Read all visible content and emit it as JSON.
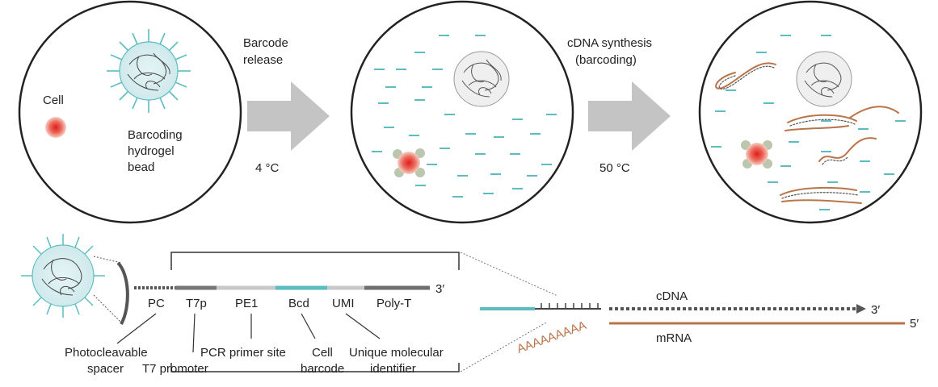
{
  "panel1": {
    "cell_label": "Cell",
    "bead_label_line1": "Barcoding",
    "bead_label_line2": "hydrogel",
    "bead_label_line3": "bead"
  },
  "arrow1": {
    "label_line1": "Barcode",
    "label_line2": "release",
    "temperature": "4 °C"
  },
  "arrow2": {
    "label_line1": "cDNA synthesis",
    "label_line2": "(barcoding)",
    "temperature": "50 °C"
  },
  "construct": {
    "segments": [
      "PC",
      "T7p",
      "PE1",
      "Bcd",
      "UMI",
      "Poly-T"
    ],
    "end_label": "3′",
    "annotations": {
      "pc_line1": "Photocleavable",
      "pc_line2": "spacer",
      "t7": "T7 promoter",
      "pe1": "PCR primer site",
      "bcd_line1": "Cell",
      "bcd_line2": "barcode",
      "umi_line1": "Unique molecular",
      "umi_line2": "identifier"
    }
  },
  "hybrid": {
    "cdna_label": "cDNA",
    "cdna_end": "3′",
    "mrna_label": "mRNA",
    "mrna_end": "5′",
    "polya": "AAAAAAAAA"
  },
  "colors": {
    "teal": "#5bbdc0",
    "mrna": "#b9744a",
    "arrow_gray": "#c4c4c4",
    "bead_fill": "#d9eef0",
    "cell_red": "#e03c3c"
  }
}
